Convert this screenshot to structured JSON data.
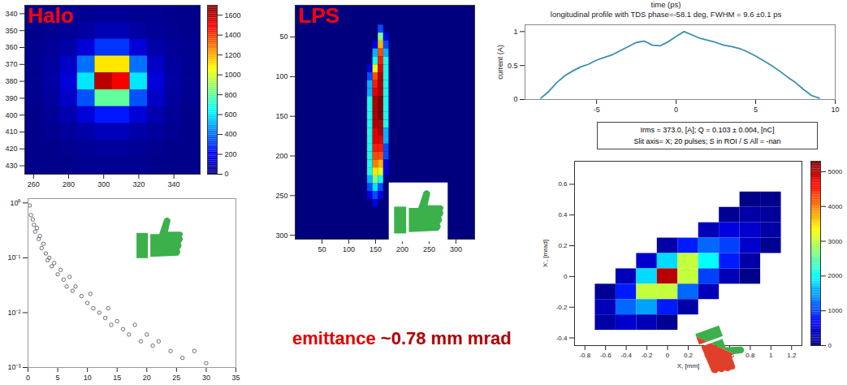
{
  "chart_data": [
    {
      "type": "heatmap",
      "title": "Halo",
      "x_centers": [
        260,
        270,
        280,
        290,
        300,
        310,
        320,
        330,
        340,
        350
      ],
      "y_centers": [
        340,
        350,
        360,
        370,
        380,
        390,
        400,
        410,
        420,
        430
      ],
      "cell_size": [
        10,
        10
      ],
      "cells": [
        [
          20,
          20,
          30,
          30,
          40,
          40,
          30,
          30,
          20,
          20
        ],
        [
          20,
          30,
          40,
          60,
          90,
          90,
          60,
          40,
          30,
          20
        ],
        [
          30,
          40,
          70,
          150,
          300,
          300,
          150,
          70,
          40,
          30
        ],
        [
          30,
          50,
          120,
          400,
          1100,
          1100,
          400,
          120,
          50,
          30
        ],
        [
          30,
          60,
          150,
          600,
          1600,
          1500,
          600,
          150,
          60,
          30
        ],
        [
          30,
          50,
          120,
          350,
          800,
          800,
          350,
          120,
          50,
          30
        ],
        [
          20,
          40,
          80,
          150,
          250,
          250,
          150,
          80,
          40,
          20
        ],
        [
          20,
          30,
          50,
          70,
          100,
          100,
          70,
          50,
          30,
          20
        ],
        [
          20,
          20,
          30,
          40,
          50,
          50,
          40,
          30,
          20,
          20
        ],
        [
          20,
          20,
          20,
          30,
          30,
          30,
          30,
          20,
          20,
          20
        ]
      ],
      "xlim": [
        255,
        355
      ],
      "ylim": [
        435,
        335
      ],
      "xticks": [
        260,
        280,
        300,
        320,
        340
      ],
      "yticks": [
        340,
        350,
        360,
        370,
        380,
        390,
        400,
        410,
        420,
        430
      ],
      "colorbar": {
        "range": [
          0,
          1700
        ],
        "ticks": [
          0,
          200,
          400,
          600,
          800,
          1000,
          1200,
          1400,
          1600
        ]
      }
    },
    {
      "type": "heatmap",
      "title": "LPS",
      "x_centers": [
        140,
        150,
        160,
        170
      ],
      "y_centers": [
        40,
        50,
        60,
        70,
        80,
        90,
        100,
        110,
        120,
        130,
        140,
        150,
        160,
        170,
        180,
        190,
        200,
        210,
        220,
        230,
        240,
        250,
        260
      ],
      "cell_size": [
        10,
        10
      ],
      "cells": [
        [
          0,
          0,
          20,
          0
        ],
        [
          0,
          0,
          50,
          10
        ],
        [
          0,
          10,
          70,
          20
        ],
        [
          0,
          30,
          80,
          30
        ],
        [
          0,
          40,
          85,
          40
        ],
        [
          10,
          60,
          90,
          40
        ],
        [
          20,
          80,
          95,
          40
        ],
        [
          30,
          85,
          95,
          40
        ],
        [
          30,
          90,
          95,
          40
        ],
        [
          40,
          95,
          100,
          40
        ],
        [
          40,
          95,
          100,
          40
        ],
        [
          40,
          95,
          100,
          40
        ],
        [
          40,
          95,
          95,
          40
        ],
        [
          40,
          90,
          95,
          30
        ],
        [
          40,
          90,
          90,
          30
        ],
        [
          40,
          85,
          85,
          20
        ],
        [
          40,
          80,
          80,
          20
        ],
        [
          40,
          75,
          70,
          10
        ],
        [
          40,
          65,
          60,
          10
        ],
        [
          30,
          50,
          40,
          0
        ],
        [
          20,
          35,
          20,
          0
        ],
        [
          10,
          20,
          10,
          0
        ],
        [
          0,
          10,
          0,
          0
        ]
      ],
      "xlim": [
        0,
        335
      ],
      "ylim": [
        305,
        10
      ],
      "xticks": [
        50,
        100,
        150,
        200,
        250,
        300
      ],
      "yticks": [
        50,
        100,
        150,
        200,
        250,
        300
      ]
    },
    {
      "type": "line",
      "xlabel": "time (ps)",
      "title": "longitudinal profile with TDS phase=-58.1 deg, FWHM = 9.6 ±0.1 ps",
      "ylabel": "current (A)",
      "x": [
        -8.5,
        -8,
        -7.5,
        -7,
        -6.5,
        -6,
        -5.5,
        -5,
        -4.5,
        -4,
        -3.5,
        -3,
        -2.5,
        -2,
        -1.5,
        -1,
        -0.5,
        0,
        0.5,
        1,
        1.5,
        2,
        2.5,
        3,
        3.5,
        4,
        4.5,
        5,
        5.5,
        6,
        6.5,
        7,
        7.5,
        8,
        8.5,
        9
      ],
      "values": [
        0.02,
        0.12,
        0.25,
        0.35,
        0.42,
        0.48,
        0.52,
        0.58,
        0.62,
        0.66,
        0.72,
        0.78,
        0.84,
        0.86,
        0.8,
        0.79,
        0.85,
        0.93,
        1.0,
        0.95,
        0.9,
        0.87,
        0.84,
        0.8,
        0.78,
        0.75,
        0.7,
        0.64,
        0.57,
        0.5,
        0.42,
        0.33,
        0.25,
        0.15,
        0.06,
        0.02
      ],
      "color": "#3a8fb0",
      "xlim": [
        -9.5,
        10
      ],
      "ylim": [
        0,
        1.1
      ],
      "xticks": [
        -5,
        0,
        5,
        10
      ],
      "yticks": [
        0,
        0.5,
        1
      ]
    },
    {
      "type": "heatmap",
      "annotation": [
        "Irms = 373.0, [A];  Q = 0.103    ± 0.004, [nC]",
        "Slit axis= X;  20 pulses;  S in ROI / S All  =  -nan"
      ],
      "xlabel": "X, [mm]",
      "ylabel": "X', [mrad]",
      "x_centers": [
        -0.6,
        -0.4,
        -0.2,
        0,
        0.2,
        0.4,
        0.6,
        0.8,
        1.0
      ],
      "y_centers": [
        0.5,
        0.4,
        0.3,
        0.2,
        0.1,
        0,
        -0.1,
        -0.2,
        -0.3
      ],
      "cell_size": [
        0.2,
        0.1
      ],
      "cells": [
        [
          0,
          0,
          0,
          0,
          0,
          0,
          0,
          50,
          80
        ],
        [
          0,
          0,
          0,
          0,
          0,
          0,
          100,
          200,
          150
        ],
        [
          0,
          0,
          0,
          0,
          0,
          300,
          500,
          400,
          200
        ],
        [
          0,
          0,
          0,
          200,
          800,
          1200,
          1000,
          400,
          100
        ],
        [
          0,
          0,
          400,
          1800,
          3000,
          2000,
          800,
          200,
          0
        ],
        [
          0,
          300,
          1800,
          5000,
          3000,
          1000,
          300,
          50,
          0
        ],
        [
          100,
          800,
          3000,
          3000,
          1200,
          300,
          0,
          0,
          0
        ],
        [
          300,
          1200,
          1500,
          800,
          200,
          0,
          0,
          0,
          0
        ],
        [
          200,
          400,
          300,
          100,
          0,
          0,
          0,
          0,
          0
        ]
      ],
      "xlim": [
        -0.9,
        1.3
      ],
      "ylim": [
        -0.45,
        0.75
      ],
      "xticks": [
        -0.8,
        -0.6,
        -0.4,
        -0.2,
        0,
        0.2,
        0.4,
        0.6,
        0.8,
        1,
        1.2
      ],
      "yticks": [
        -0.4,
        -0.2,
        0,
        0.2,
        0.4,
        0.6
      ],
      "colorbar": {
        "range": [
          0,
          5300
        ],
        "ticks": [
          0,
          1000,
          2000,
          3000,
          4000,
          5000
        ]
      }
    },
    {
      "type": "scatter",
      "log": "y",
      "marker": "circle",
      "color": "#4a4a5a",
      "x": [
        0.3,
        0.5,
        0.8,
        1,
        1.2,
        1.5,
        1.8,
        2,
        2.3,
        2.6,
        3,
        3.3,
        3.6,
        4,
        4.4,
        5,
        5.5,
        6,
        6.5,
        7,
        7.5,
        8,
        9,
        10,
        10.5,
        11,
        12,
        13,
        13.5,
        14,
        15,
        16,
        17,
        18,
        19,
        20,
        21,
        22,
        24,
        26,
        28,
        30
      ],
      "values": [
        0.9,
        0.6,
        0.5,
        0.4,
        0.3,
        0.35,
        0.22,
        0.25,
        0.15,
        0.18,
        0.12,
        0.09,
        0.1,
        0.07,
        0.08,
        0.05,
        0.06,
        0.04,
        0.03,
        0.045,
        0.025,
        0.03,
        0.02,
        0.015,
        0.022,
        0.012,
        0.01,
        0.008,
        0.012,
        0.006,
        0.007,
        0.005,
        0.004,
        0.006,
        0.003,
        0.004,
        0.0025,
        0.003,
        0.002,
        0.0015,
        0.002,
        0.0012
      ],
      "xlim": [
        0,
        35
      ],
      "ylim": [
        0.001,
        1.2
      ],
      "xticks": [
        0,
        5,
        10,
        15,
        20,
        25,
        30,
        35
      ],
      "yticks": [
        {
          "value": 1,
          "label": "10⁰"
        },
        {
          "value": 0.1,
          "label": "10⁻¹"
        },
        {
          "value": 0.01,
          "label": "10⁻²"
        },
        {
          "value": 0.001,
          "label": "10⁻³"
        }
      ]
    }
  ],
  "annotation": {
    "term": "emittance",
    "value": "~0.78 mm mrad"
  }
}
